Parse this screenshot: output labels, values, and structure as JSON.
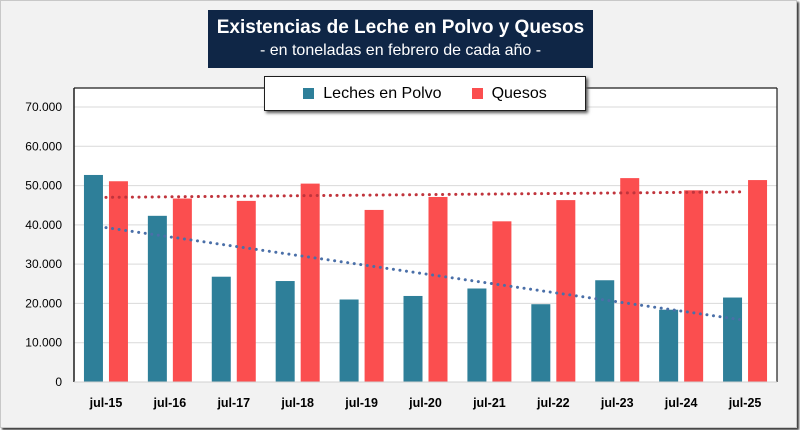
{
  "title": {
    "main": "Existencias de Leche en Polvo y Quesos",
    "subtitle": "- en toneladas en febrero de cada año -"
  },
  "colors": {
    "leches_en_polvo": "#2e7f99",
    "quesos": "#fb4e4f",
    "trend_leches": "#4a6fa8",
    "trend_quesos": "#c0343c",
    "title_bg": "#0f2646"
  },
  "legend": {
    "items": [
      {
        "label": "Leches en Polvo",
        "color": "#2e7f99"
      },
      {
        "label": "Quesos",
        "color": "#fb4e4f"
      }
    ]
  },
  "chart_data": {
    "type": "bar",
    "title": "Existencias de Leche en Polvo y Quesos",
    "subtitle": "- en toneladas en febrero de cada año -",
    "xlabel": "",
    "ylabel": "",
    "categories": [
      "jul-15",
      "jul-16",
      "jul-17",
      "jul-18",
      "jul-19",
      "jul-20",
      "jul-21",
      "jul-22",
      "jul-23",
      "jul-24",
      "jul-25"
    ],
    "series": [
      {
        "name": "Leches en Polvo",
        "values": [
          52700,
          42300,
          26800,
          25700,
          21000,
          21900,
          23800,
          19800,
          25900,
          18400,
          21500
        ]
      },
      {
        "name": "Quesos",
        "values": [
          51100,
          46700,
          46100,
          50500,
          43800,
          47100,
          40900,
          46300,
          51900,
          48800,
          51400
        ]
      }
    ],
    "trendlines": [
      {
        "series": "Leches en Polvo",
        "type": "linear",
        "style": "dotted",
        "start": 39300,
        "end": 15700
      },
      {
        "series": "Quesos",
        "type": "linear",
        "style": "dotted",
        "start": 47000,
        "end": 48400
      }
    ],
    "ylim": [
      0,
      70000
    ],
    "yticks": [
      0,
      10000,
      20000,
      30000,
      40000,
      50000,
      60000,
      70000
    ],
    "ytick_labels": [
      "0",
      "10.000",
      "20.000",
      "30.000",
      "40.000",
      "50.000",
      "60.000",
      "70.000"
    ],
    "grid": true,
    "legend_position": "top-center"
  }
}
